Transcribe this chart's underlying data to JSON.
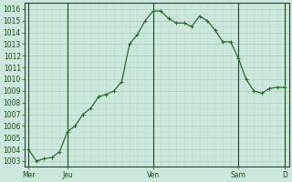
{
  "x_values": [
    0,
    1,
    2,
    3,
    4,
    5,
    6,
    7,
    8,
    9,
    10,
    11,
    12,
    13,
    14,
    15,
    16,
    17,
    18,
    19,
    20,
    21,
    22,
    23,
    24,
    25,
    26,
    27,
    28,
    29,
    30,
    31,
    32,
    33
  ],
  "y_values": [
    1004.0,
    1003.0,
    1003.2,
    1003.3,
    1003.8,
    1005.5,
    1006.0,
    1007.0,
    1007.5,
    1008.5,
    1008.7,
    1009.0,
    1009.8,
    1013.0,
    1013.8,
    1015.0,
    1015.8,
    1015.85,
    1015.2,
    1014.8,
    1014.8,
    1014.5,
    1015.4,
    1015.0,
    1014.2,
    1013.2,
    1013.2,
    1011.8,
    1010.0,
    1009.0,
    1008.8,
    1009.2,
    1009.3,
    1009.3
  ],
  "x_tick_positions": [
    0,
    5,
    16,
    27,
    33
  ],
  "x_tick_labels": [
    "Mer",
    "Jeu",
    "Ven",
    "Sam",
    "D"
  ],
  "y_min": 1002.5,
  "y_max": 1016.5,
  "y_ticks": [
    1003,
    1004,
    1005,
    1006,
    1007,
    1008,
    1009,
    1010,
    1011,
    1012,
    1013,
    1014,
    1015,
    1016
  ],
  "line_color": "#2d6a2d",
  "marker_color": "#2d6a2d",
  "bg_color": "#cce8dc",
  "plot_bg_color": "#cce8dc",
  "major_grid_color": "#aacabc",
  "minor_grid_color": "#c0ddd0",
  "axis_color": "#1a4a1a",
  "tick_label_color": "#1a4a1a",
  "vline_color": "#1a4a1a",
  "figsize": [
    3.2,
    2.0
  ],
  "dpi": 100
}
